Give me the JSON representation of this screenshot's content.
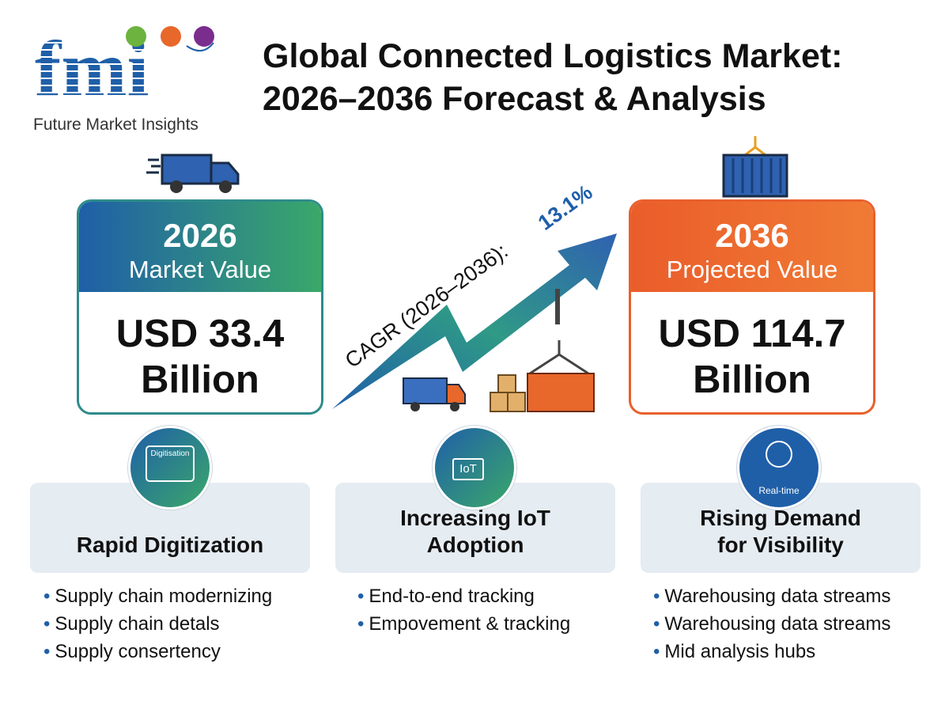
{
  "logo": {
    "text": "Future Market Insights",
    "letters": "fmi"
  },
  "title": {
    "line1": "Global Connected Logistics Market:",
    "line2": "2026–2036 Forecast & Analysis"
  },
  "left_card": {
    "year": "2026",
    "subtitle": "Market Value",
    "value_line1": "USD 33.4",
    "value_line2": "Billion"
  },
  "right_card": {
    "year": "2036",
    "subtitle": "Projected Value",
    "value_line1": "USD 114.7",
    "value_line2": "Billion"
  },
  "cagr": {
    "label": "CAGR (2026–2036): ",
    "value": "13.1%"
  },
  "drivers": [
    {
      "icon_label": "Digitisation",
      "title": "Rapid Digitization",
      "bullets": [
        "Supply chain modernizing",
        "Supply chain detals",
        "Supply consertency"
      ]
    },
    {
      "icon_label": "IoT",
      "title": "Increasing IoT Adoption",
      "bullets": [
        "End-to-end tracking",
        "Empovement & tracking"
      ]
    },
    {
      "icon_label": "Real-time",
      "title": "Rising Demand for Visibility",
      "bullets": [
        "Warehousing data streams",
        "Warehousing data streams",
        "Mid analysis hubs"
      ]
    }
  ],
  "colors": {
    "blue": "#1f5fa8",
    "green": "#3aa86a",
    "orange": "#ea5d2a",
    "panel": "#e5ecf2"
  }
}
